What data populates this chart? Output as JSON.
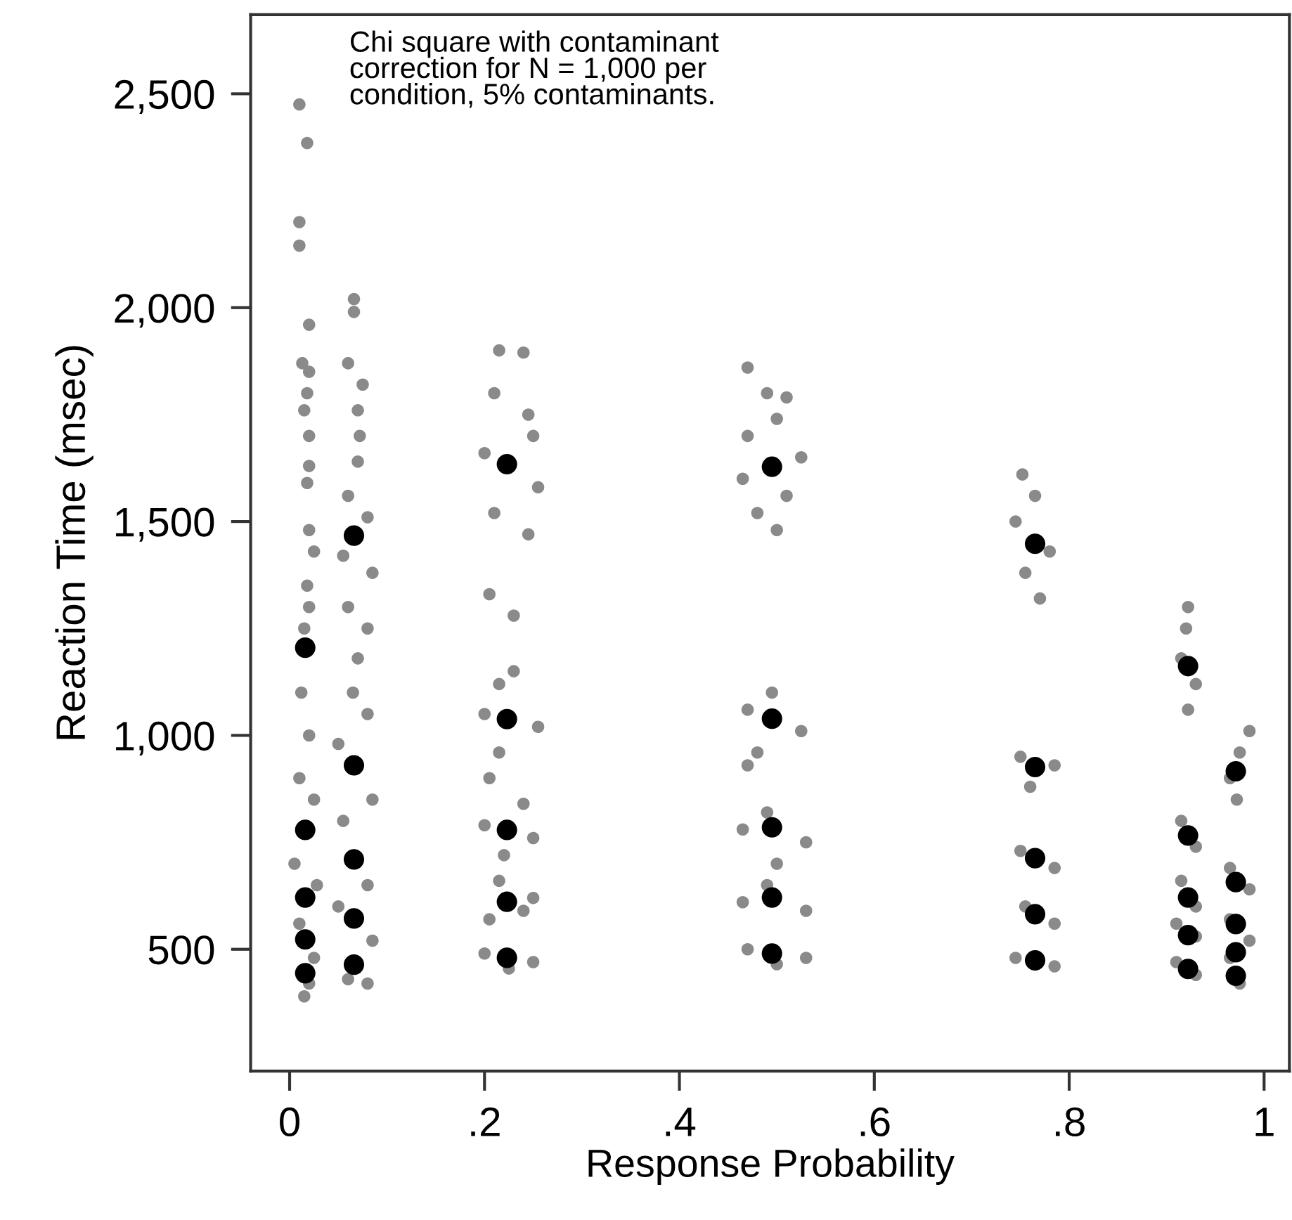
{
  "chart_data": {
    "type": "scatter",
    "xlabel": "Response Probability",
    "ylabel": "Reaction Time (msec)",
    "annotations": [
      "Chi square with contaminant\ncorrection for N = 1,000 per\ncondition, 5% contaminants."
    ],
    "xlim": [
      -0.04,
      1.026
    ],
    "ylim": [
      215,
      2685
    ],
    "xticks": [
      0,
      {
        "value": 0.2,
        "label": ".2"
      },
      {
        "value": 0.4,
        "label": ".4"
      },
      {
        "value": 0.6,
        "label": ".6"
      },
      {
        "value": 0.8,
        "label": ".8"
      },
      1
    ],
    "yticks": [
      {
        "value": 500,
        "label": "500"
      },
      {
        "value": 1000,
        "label": "1,000"
      },
      {
        "value": 1500,
        "label": "1,500"
      },
      {
        "value": 2000,
        "label": "2,000"
      },
      {
        "value": 2500,
        "label": "2,500"
      }
    ],
    "grid": false,
    "legend": false,
    "marker": "circle",
    "series": [
      {
        "color": "#8a8a8a",
        "x": [
          0.01,
          0.018,
          0.01,
          0.01,
          0.02,
          0.013,
          0.02,
          0.018,
          0.015,
          0.02,
          0.02,
          0.018,
          0.02,
          0.025,
          0.018,
          0.02,
          0.015,
          0.012,
          0.02,
          0.01,
          0.025,
          0.005,
          0.028,
          0.01,
          0.025,
          0.02,
          0.015,
          0.066,
          0.066,
          0.06,
          0.075,
          0.07,
          0.072,
          0.07,
          0.06,
          0.08,
          0.055,
          0.085,
          0.06,
          0.08,
          0.07,
          0.065,
          0.08,
          0.05,
          0.085,
          0.055,
          0.08,
          0.05,
          0.085,
          0.06,
          0.08,
          0.215,
          0.24,
          0.21,
          0.245,
          0.25,
          0.2,
          0.255,
          0.21,
          0.245,
          0.205,
          0.23,
          0.23,
          0.215,
          0.2,
          0.255,
          0.215,
          0.205,
          0.24,
          0.2,
          0.25,
          0.22,
          0.215,
          0.25,
          0.205,
          0.24,
          0.2,
          0.25,
          0.225,
          0.47,
          0.49,
          0.51,
          0.5,
          0.47,
          0.525,
          0.465,
          0.51,
          0.48,
          0.5,
          0.495,
          0.47,
          0.525,
          0.48,
          0.47,
          0.49,
          0.465,
          0.53,
          0.5,
          0.49,
          0.465,
          0.53,
          0.47,
          0.53,
          0.5,
          0.752,
          0.765,
          0.745,
          0.78,
          0.755,
          0.77,
          0.75,
          0.785,
          0.76,
          0.75,
          0.785,
          0.755,
          0.785,
          0.745,
          0.785,
          0.922,
          0.92,
          0.915,
          0.93,
          0.922,
          0.915,
          0.93,
          0.915,
          0.93,
          0.91,
          0.93,
          0.91,
          0.93,
          0.985,
          0.975,
          0.965,
          0.972,
          0.965,
          0.985,
          0.965,
          0.985,
          0.965,
          0.975
        ],
        "values": [
          2475,
          2385,
          2200,
          2145,
          1960,
          1870,
          1850,
          1800,
          1760,
          1700,
          1630,
          1590,
          1480,
          1430,
          1350,
          1300,
          1250,
          1100,
          1000,
          900,
          850,
          700,
          650,
          560,
          480,
          420,
          390,
          2020,
          1990,
          1870,
          1820,
          1760,
          1700,
          1640,
          1560,
          1510,
          1420,
          1380,
          1300,
          1250,
          1180,
          1100,
          1050,
          980,
          850,
          800,
          650,
          600,
          520,
          430,
          420,
          1900,
          1895,
          1800,
          1750,
          1700,
          1660,
          1580,
          1520,
          1470,
          1330,
          1280,
          1150,
          1120,
          1050,
          1020,
          960,
          900,
          840,
          790,
          760,
          720,
          660,
          620,
          570,
          590,
          490,
          470,
          455,
          1860,
          1800,
          1790,
          1740,
          1700,
          1650,
          1600,
          1560,
          1520,
          1480,
          1100,
          1060,
          1010,
          960,
          930,
          820,
          780,
          750,
          700,
          650,
          610,
          590,
          500,
          480,
          465,
          1610,
          1560,
          1500,
          1430,
          1380,
          1320,
          950,
          930,
          880,
          730,
          690,
          600,
          560,
          480,
          460,
          1300,
          1250,
          1180,
          1120,
          1060,
          800,
          740,
          660,
          600,
          560,
          530,
          470,
          440,
          1010,
          960,
          900,
          850,
          690,
          640,
          570,
          520,
          480,
          420
        ]
      },
      {
        "color": "#000000",
        "x": [
          0.016,
          0.016,
          0.016,
          0.016,
          0.016,
          0.066,
          0.066,
          0.066,
          0.066,
          0.066,
          0.223,
          0.223,
          0.223,
          0.223,
          0.223,
          0.495,
          0.495,
          0.495,
          0.495,
          0.495,
          0.765,
          0.765,
          0.765,
          0.765,
          0.765,
          0.922,
          0.922,
          0.922,
          0.922,
          0.922,
          0.971,
          0.971,
          0.971,
          0.971,
          0.971
        ],
        "values": [
          1205,
          779,
          621,
          523,
          444,
          1467,
          930,
          710,
          572,
          464,
          1634,
          1038,
          779,
          611,
          480,
          1628,
          1039,
          785,
          621,
          490,
          1448,
          926,
          713,
          582,
          474,
          1162,
          766,
          621,
          533,
          454,
          916,
          657,
          559,
          493,
          438
        ]
      }
    ]
  }
}
